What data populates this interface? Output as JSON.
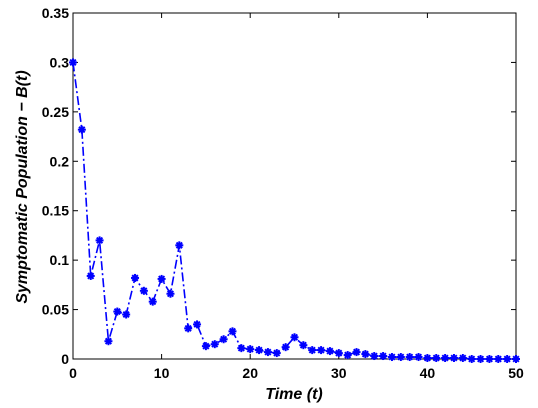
{
  "chart_data": {
    "type": "line",
    "xlabel": "Time (t)",
    "ylabel": "Symptomatic Population − B(t)",
    "xlim": [
      0,
      50
    ],
    "ylim": [
      0,
      0.35
    ],
    "x_ticks": [
      "0",
      "10",
      "20",
      "30",
      "40",
      "50"
    ],
    "y_ticks": [
      "0",
      "0.05",
      "0.1",
      "0.15",
      "0.2",
      "0.25",
      "0.3",
      "0.35"
    ],
    "grid": false,
    "legend": "none",
    "series": [
      {
        "color": "#0000ff",
        "line_style": "dash-dot",
        "marker": "asterisk",
        "x": [
          0,
          1,
          2,
          3,
          4,
          5,
          6,
          7,
          8,
          9,
          10,
          11,
          12,
          13,
          14,
          15,
          16,
          17,
          18,
          19,
          20,
          21,
          22,
          23,
          24,
          25,
          26,
          27,
          28,
          29,
          30,
          31,
          32,
          33,
          34,
          35,
          36,
          37,
          38,
          39,
          40,
          41,
          42,
          43,
          44,
          45,
          46,
          47,
          48,
          49,
          50
        ],
        "values": [
          0.3,
          0.232,
          0.084,
          0.12,
          0.018,
          0.048,
          0.045,
          0.082,
          0.069,
          0.058,
          0.081,
          0.066,
          0.115,
          0.031,
          0.035,
          0.013,
          0.015,
          0.02,
          0.028,
          0.011,
          0.01,
          0.009,
          0.007,
          0.006,
          0.012,
          0.022,
          0.014,
          0.009,
          0.009,
          0.008,
          0.006,
          0.004,
          0.007,
          0.005,
          0.003,
          0.003,
          0.002,
          0.002,
          0.002,
          0.002,
          0.001,
          0.001,
          0.001,
          0.001,
          0.001,
          0.0,
          0.0,
          0.0,
          0.0,
          0.0,
          0.0
        ]
      }
    ]
  }
}
